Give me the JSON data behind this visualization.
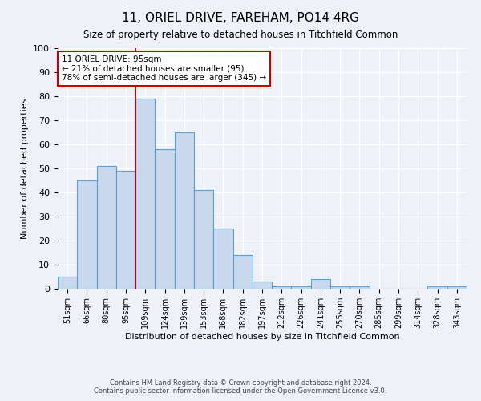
{
  "title": "11, ORIEL DRIVE, FAREHAM, PO14 4RG",
  "subtitle": "Size of property relative to detached houses in Titchfield Common",
  "xlabel": "Distribution of detached houses by size in Titchfield Common",
  "ylabel": "Number of detached properties",
  "bin_labels": [
    "51sqm",
    "66sqm",
    "80sqm",
    "95sqm",
    "109sqm",
    "124sqm",
    "139sqm",
    "153sqm",
    "168sqm",
    "182sqm",
    "197sqm",
    "212sqm",
    "226sqm",
    "241sqm",
    "255sqm",
    "270sqm",
    "285sqm",
    "299sqm",
    "314sqm",
    "328sqm",
    "343sqm"
  ],
  "bar_heights": [
    5,
    45,
    51,
    49,
    79,
    58,
    65,
    41,
    25,
    14,
    3,
    1,
    1,
    4,
    1,
    1,
    0,
    0,
    0,
    1,
    1
  ],
  "bar_color": "#c8d9ed",
  "bar_edge_color": "#5a9fd4",
  "ref_line_index": 3,
  "reference_line_label": "11 ORIEL DRIVE: 95sqm",
  "annotation_line1": "← 21% of detached houses are smaller (95)",
  "annotation_line2": "78% of semi-detached houses are larger (345) →",
  "annotation_box_color": "#ffffff",
  "annotation_box_edge": "#cc0000",
  "ref_line_color": "#cc0000",
  "ylim": [
    0,
    100
  ],
  "yticks": [
    0,
    10,
    20,
    30,
    40,
    50,
    60,
    70,
    80,
    90,
    100
  ],
  "footer1": "Contains HM Land Registry data © Crown copyright and database right 2024.",
  "footer2": "Contains public sector information licensed under the Open Government Licence v3.0.",
  "bg_color": "#eef2f8"
}
